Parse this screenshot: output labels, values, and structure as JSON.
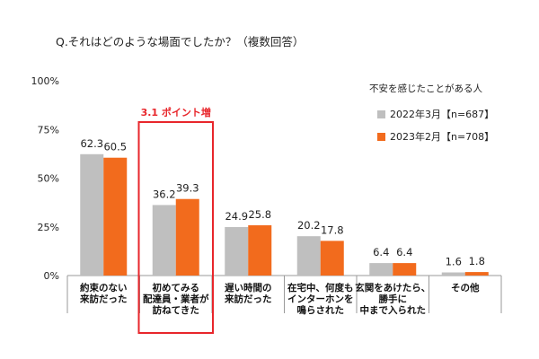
{
  "chart_data": {
    "type": "bar",
    "title": "Q.それはどのような場面でしたか？（複数回答）",
    "ylim": [
      0,
      100
    ],
    "yticks": [
      "0%",
      "25%",
      "50%",
      "75%",
      "100%"
    ],
    "ytick_values": [
      0,
      25,
      50,
      75,
      100
    ],
    "grid": false,
    "legend_title": "不安を感じたことがある人",
    "legend_position": "top-right",
    "categories": [
      [
        "約束のない",
        "来訪だった"
      ],
      [
        "初めてみる",
        "配達員・業者が",
        "訪ねてきた"
      ],
      [
        "遅い時間の",
        "来訪だった"
      ],
      [
        "在宅中、何度も",
        "インターホンを",
        "鳴らされた"
      ],
      [
        "玄関をあけたら、",
        "勝手に",
        "中まで入られた"
      ],
      [
        "その他"
      ]
    ],
    "series": [
      {
        "name": "2022年3月【n=687】",
        "color": "#bfbfbf",
        "values": [
          62.3,
          36.2,
          24.9,
          20.2,
          6.4,
          1.6
        ]
      },
      {
        "name": "2023年2月【n=708】",
        "color": "#f26b1d",
        "values": [
          60.5,
          39.3,
          25.8,
          17.8,
          6.4,
          1.8
        ]
      }
    ],
    "annotation": {
      "text": "3.1 ポイント増",
      "color": "#e8262b",
      "category_index": 1
    }
  }
}
